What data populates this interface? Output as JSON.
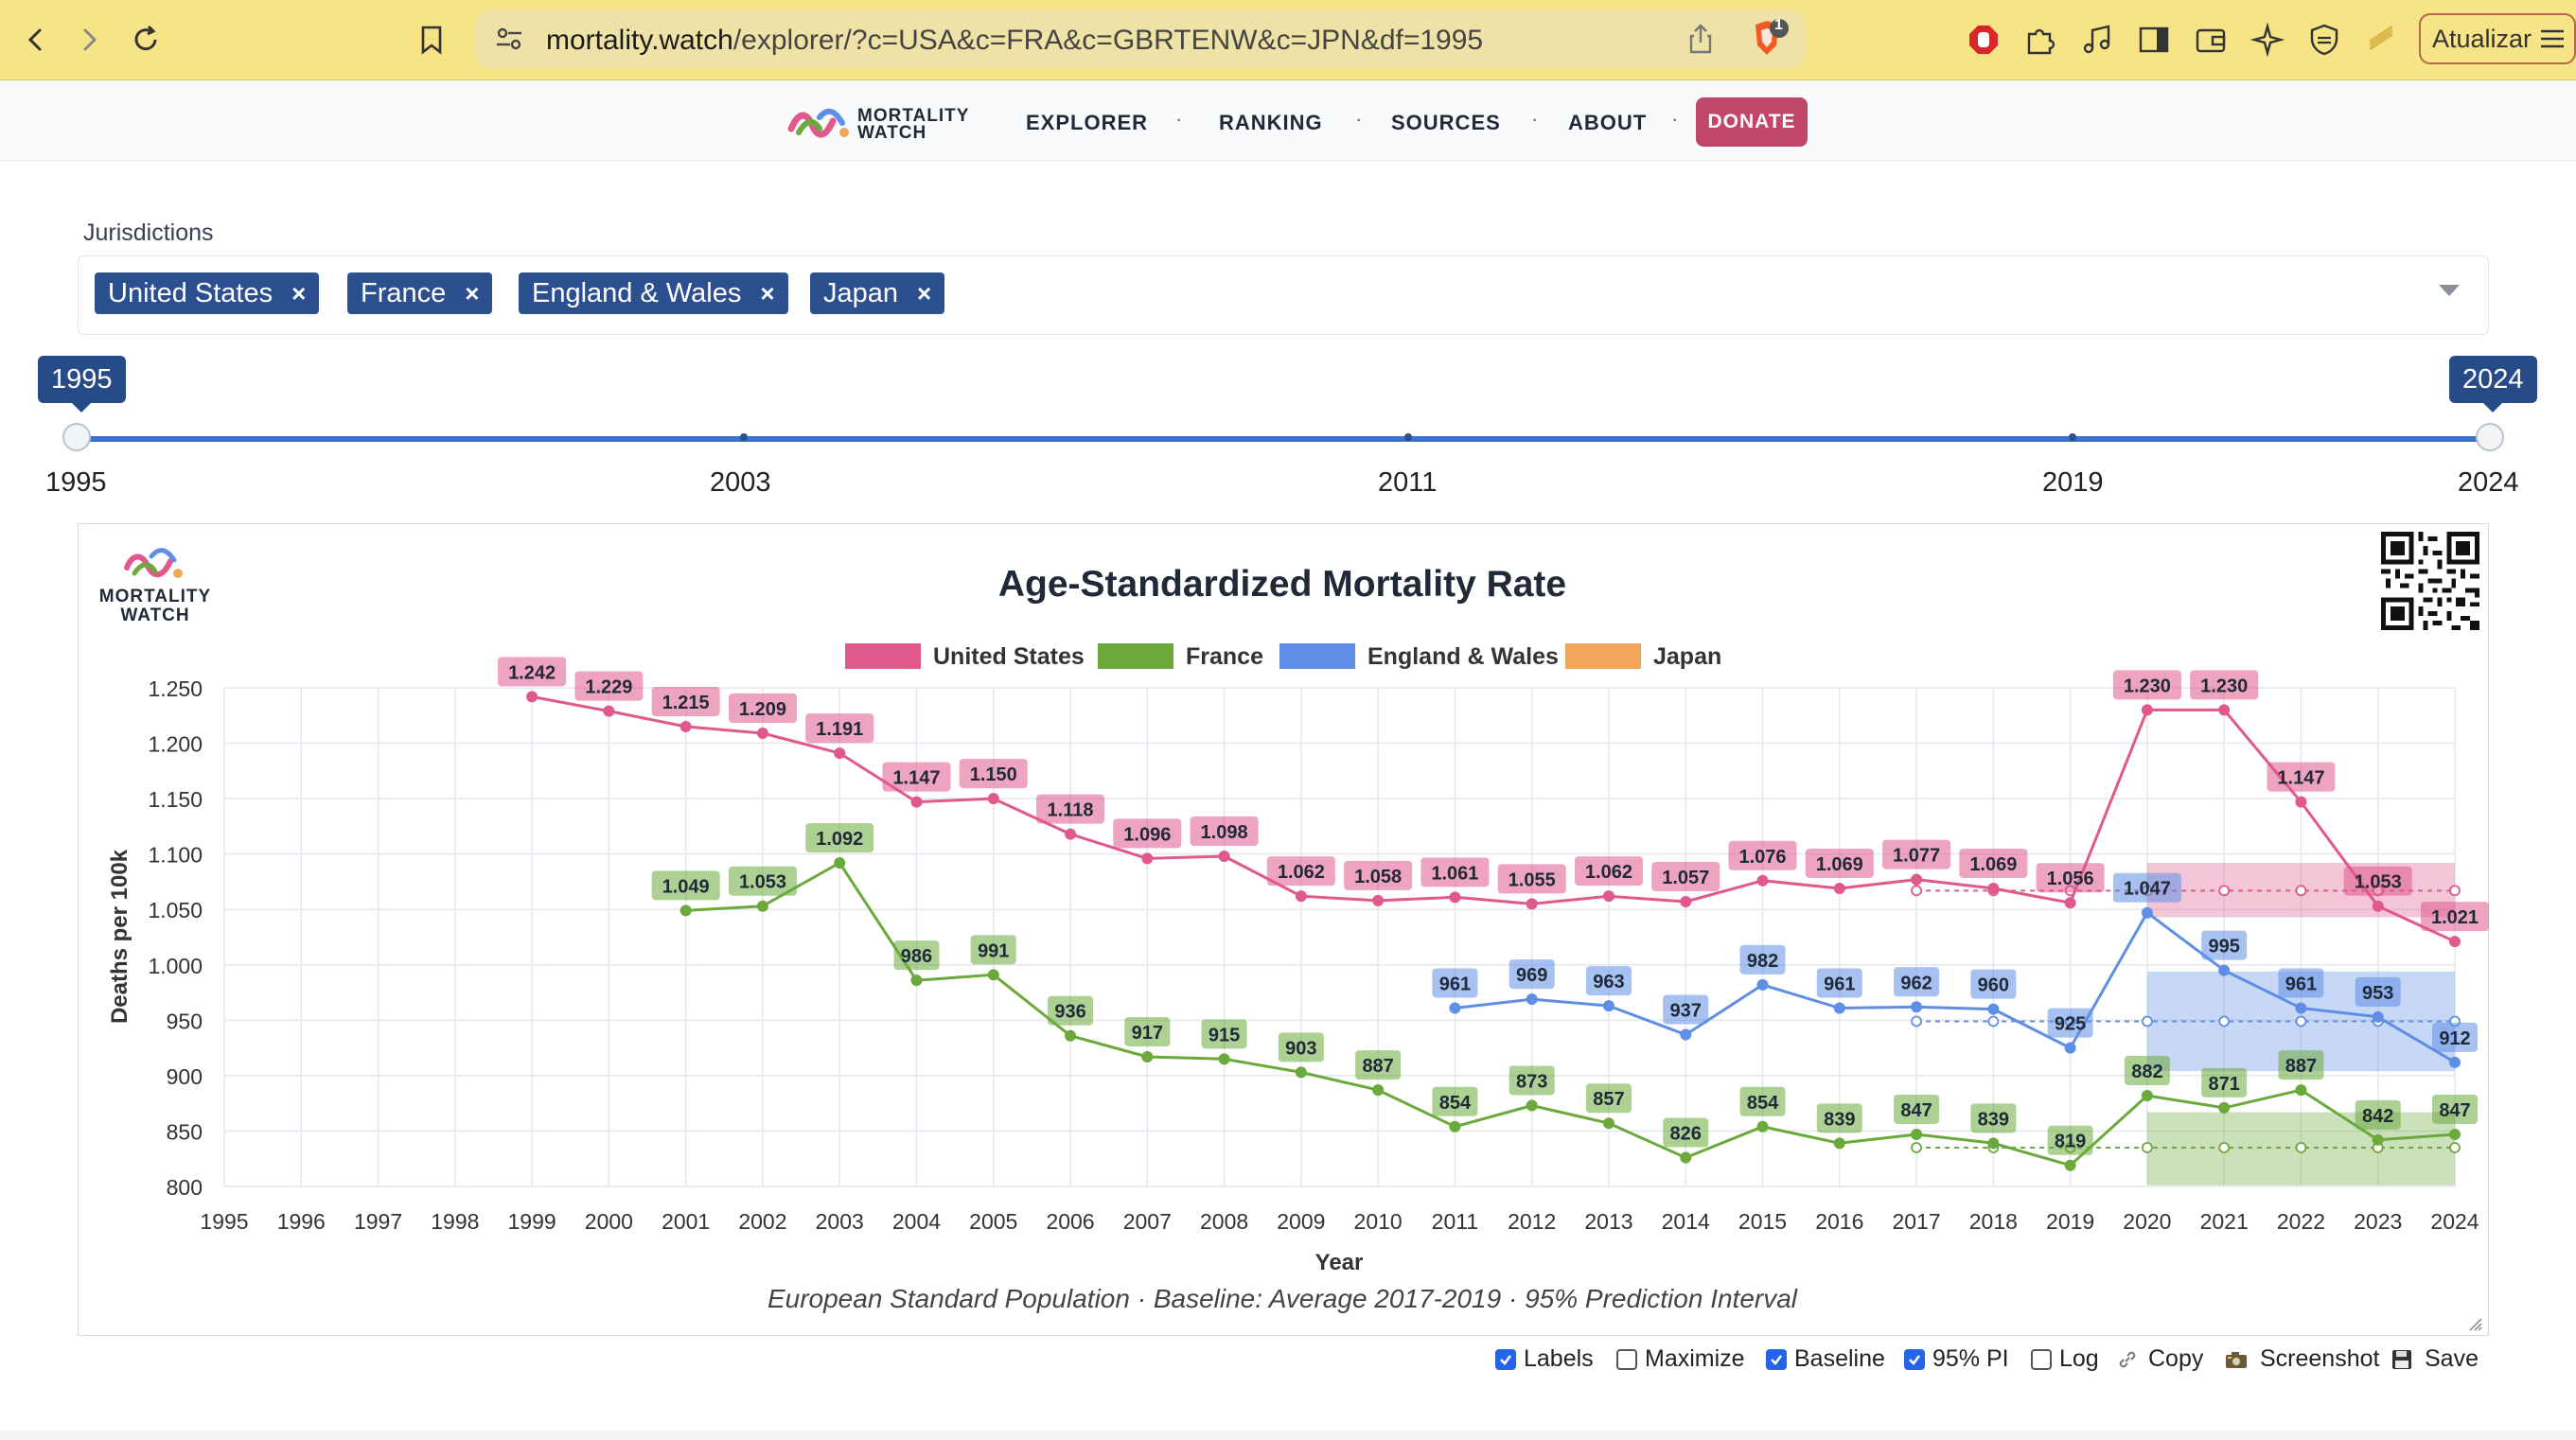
{
  "browser": {
    "url_host": "mortality.watch",
    "url_path": "/explorer/?c=USA&c=FRA&c=GBRTENW&c=JPN&df=1995",
    "update_label": "Atualizar",
    "shield_badge": "1"
  },
  "site": {
    "logo_line1": "MORTALITY",
    "logo_line2": "WATCH",
    "menu": [
      "EXPLORER",
      "RANKING",
      "SOURCES",
      "ABOUT"
    ],
    "donate_label": "DONATE"
  },
  "jurisdictions": {
    "label": "Jurisdictions",
    "chips": [
      "United States",
      "France",
      "England & Wales",
      "Japan"
    ],
    "remove_glyph": "×"
  },
  "slider": {
    "from": "1995",
    "to": "2024",
    "tick_labels": [
      "1995",
      "2003",
      "2011",
      "2019",
      "2024"
    ]
  },
  "colors": {
    "usa": "#e0588c",
    "france": "#6aa93a",
    "ew": "#5f8ee6",
    "japan": "#f2a65a",
    "accent": "#3b72d1",
    "donate": "#c2456a",
    "chip": "#2b4f8f"
  },
  "controls": [
    {
      "label": "Labels",
      "checked": true
    },
    {
      "label": "Maximize",
      "checked": false
    },
    {
      "label": "Baseline",
      "checked": true
    },
    {
      "label": "95% PI",
      "checked": true
    },
    {
      "label": "Log",
      "checked": false
    }
  ],
  "actions": [
    {
      "label": "Copy",
      "icon": "link-icon"
    },
    {
      "label": "Screenshot",
      "icon": "camera-icon"
    },
    {
      "label": "Save",
      "icon": "floppy-disk-icon"
    }
  ],
  "chart_data": {
    "type": "line",
    "title": "Age-Standardized Mortality Rate",
    "xlabel": "Year",
    "ylabel": "Deaths per 100k",
    "subtitle": "European Standard Population · Baseline: Average 2017-2019 · 95% Prediction Interval",
    "x": [
      1995,
      1996,
      1997,
      1998,
      1999,
      2000,
      2001,
      2002,
      2003,
      2004,
      2005,
      2006,
      2007,
      2008,
      2009,
      2010,
      2011,
      2012,
      2013,
      2014,
      2015,
      2016,
      2017,
      2018,
      2019,
      2020,
      2021,
      2022,
      2023,
      2024
    ],
    "ylim": [
      800,
      1250
    ],
    "yticks": [
      800,
      850,
      900,
      950,
      1000,
      1050,
      1100,
      1150,
      1200,
      1250
    ],
    "ytick_labels": [
      "800",
      "850",
      "900",
      "950",
      "1.000",
      "1.050",
      "1.100",
      "1.150",
      "1.200",
      "1.250"
    ],
    "grid": true,
    "legend_position": "top-center",
    "series": [
      {
        "name": "United States",
        "key": "usa",
        "points": [
          [
            1999,
            1242
          ],
          [
            2000,
            1229
          ],
          [
            2001,
            1215
          ],
          [
            2002,
            1209
          ],
          [
            2003,
            1191
          ],
          [
            2004,
            1147
          ],
          [
            2005,
            1150
          ],
          [
            2006,
            1118
          ],
          [
            2007,
            1096
          ],
          [
            2008,
            1098
          ],
          [
            2009,
            1062
          ],
          [
            2010,
            1058
          ],
          [
            2011,
            1061
          ],
          [
            2012,
            1055
          ],
          [
            2013,
            1062
          ],
          [
            2014,
            1057
          ],
          [
            2015,
            1076
          ],
          [
            2016,
            1069
          ],
          [
            2017,
            1077
          ],
          [
            2018,
            1069
          ],
          [
            2019,
            1056
          ],
          [
            2020,
            1230
          ],
          [
            2021,
            1230
          ],
          [
            2022,
            1147
          ],
          [
            2023,
            1053
          ],
          [
            2024,
            1021
          ]
        ],
        "labels": [
          "1.242",
          "1.229",
          "1.215",
          "1.209",
          "1.191",
          "1.147",
          "1.150",
          "1.118",
          "1.096",
          "1.098",
          "1.062",
          "1.058",
          "1.061",
          "1.055",
          "1.062",
          "1.057",
          "1.076",
          "1.069",
          "1.077",
          "1.069",
          "1.056",
          "1.230",
          "1.230",
          "1.147",
          "1.053",
          "1.021"
        ],
        "baseline": 1067,
        "pi": [
          1043,
          1092
        ]
      },
      {
        "name": "France",
        "key": "france",
        "points": [
          [
            2001,
            1049
          ],
          [
            2002,
            1053
          ],
          [
            2003,
            1092
          ],
          [
            2004,
            986
          ],
          [
            2005,
            991
          ],
          [
            2006,
            936
          ],
          [
            2007,
            917
          ],
          [
            2008,
            915
          ],
          [
            2009,
            903
          ],
          [
            2010,
            887
          ],
          [
            2011,
            854
          ],
          [
            2012,
            873
          ],
          [
            2013,
            857
          ],
          [
            2014,
            826
          ],
          [
            2015,
            854
          ],
          [
            2016,
            839
          ],
          [
            2017,
            847
          ],
          [
            2018,
            839
          ],
          [
            2019,
            819
          ],
          [
            2020,
            882
          ],
          [
            2021,
            871
          ],
          [
            2022,
            887
          ],
          [
            2023,
            842
          ],
          [
            2024,
            847
          ]
        ],
        "labels": [
          "1.049",
          "1.053",
          "1.092",
          "986",
          "991",
          "936",
          "917",
          "915",
          "903",
          "887",
          "854",
          "873",
          "857",
          "826",
          "854",
          "839",
          "847",
          "839",
          "819",
          "882",
          "871",
          "887",
          "842",
          "847"
        ],
        "baseline": 835,
        "pi": [
          801,
          867
        ]
      },
      {
        "name": "England & Wales",
        "key": "ew",
        "points": [
          [
            2011,
            961
          ],
          [
            2012,
            969
          ],
          [
            2013,
            963
          ],
          [
            2014,
            937
          ],
          [
            2015,
            982
          ],
          [
            2016,
            961
          ],
          [
            2017,
            962
          ],
          [
            2018,
            960
          ],
          [
            2019,
            925
          ],
          [
            2020,
            1047
          ],
          [
            2021,
            995
          ],
          [
            2022,
            961
          ],
          [
            2023,
            953
          ],
          [
            2024,
            912
          ]
        ],
        "labels": [
          "961",
          "969",
          "963",
          "937",
          "982",
          "961",
          "962",
          "960",
          "925",
          "1.047",
          "995",
          "961",
          "953",
          "912"
        ],
        "baseline": 949,
        "pi": [
          904,
          994
        ]
      },
      {
        "name": "Japan",
        "key": "japan",
        "points": [],
        "labels": []
      }
    ]
  }
}
